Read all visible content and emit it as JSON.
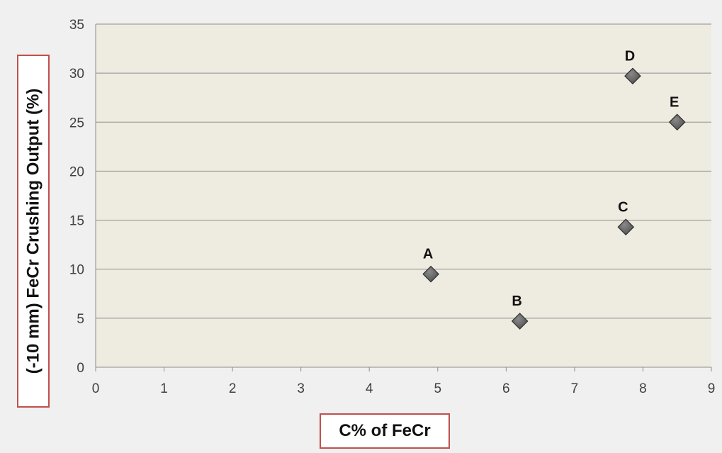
{
  "chart_data": {
    "type": "scatter",
    "title": "",
    "xlabel": "C% of FeCr",
    "ylabel": "(-10 mm) FeCr Crushing Output (%)",
    "xlim": [
      0,
      9
    ],
    "ylim": [
      0,
      35
    ],
    "x_ticks": [
      "0",
      "1",
      "2",
      "3",
      "4",
      "5",
      "6",
      "7",
      "8",
      "9"
    ],
    "y_ticks": [
      "0",
      "5",
      "10",
      "15",
      "20",
      "25",
      "30",
      "35"
    ],
    "grid": "horizontal",
    "legend": "none",
    "marker": "diamond",
    "marker_color": "#505050",
    "plot_background": "#eeece1",
    "axis_title_border_color": "#c0504d",
    "series": [
      {
        "points": [
          {
            "label": "A",
            "x": 4.9,
            "y": 9.5
          },
          {
            "label": "B",
            "x": 6.2,
            "y": 4.7
          },
          {
            "label": "C",
            "x": 7.75,
            "y": 14.3
          },
          {
            "label": "D",
            "x": 7.85,
            "y": 29.7
          },
          {
            "label": "E",
            "x": 8.5,
            "y": 25.0
          }
        ]
      }
    ]
  }
}
